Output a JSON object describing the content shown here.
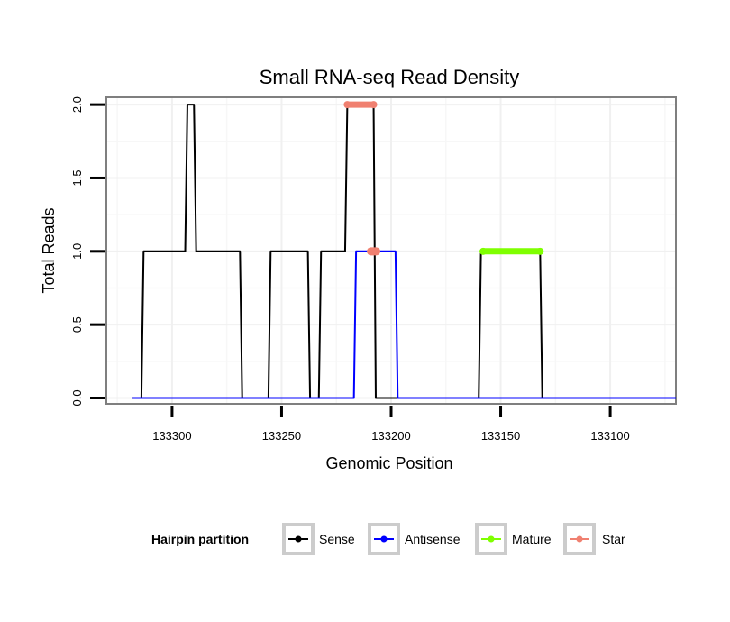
{
  "chart_data": {
    "type": "line",
    "title": "Small RNA-seq Read Density",
    "xlabel": "Genomic Position",
    "ylabel": "Total Reads",
    "xlim": [
      133330,
      133070
    ],
    "ylim": [
      -0.04,
      2.05
    ],
    "x_reversed": true,
    "x_ticks": [
      133300,
      133250,
      133200,
      133150,
      133100
    ],
    "x_tick_labels": [
      "133300",
      "133250",
      "133200",
      "133150",
      "133100"
    ],
    "y_ticks": [
      0,
      0.5,
      1,
      1.5,
      2
    ],
    "y_tick_labels": [
      "0.0",
      "0.5",
      "1.0",
      "1.5",
      "2.0"
    ],
    "grid": true,
    "legend": {
      "title": "Hairpin partition",
      "position": "bottom",
      "entries": [
        "Sense",
        "Antisense",
        "Mature",
        "Star"
      ]
    },
    "series": [
      {
        "name": "Sense",
        "color": "#000000",
        "x": [
          133318,
          133314,
          133313,
          133294,
          133293,
          133290,
          133289,
          133269,
          133268,
          133256,
          133255,
          133238,
          133237,
          133233,
          133232,
          133221,
          133220,
          133208,
          133207,
          133200,
          133199,
          133160,
          133159,
          133132,
          133131,
          133070
        ],
        "y": [
          0,
          0,
          1,
          1,
          2,
          2,
          1,
          1,
          0,
          0,
          1,
          1,
          0,
          0,
          1,
          1,
          2,
          2,
          0,
          0,
          0,
          0,
          1,
          1,
          0,
          0
        ]
      },
      {
        "name": "Antisense",
        "color": "#0000ff",
        "x": [
          133318,
          133217,
          133216,
          133198,
          133197,
          133132,
          133131,
          133070
        ],
        "y": [
          0,
          0,
          1,
          1,
          0,
          0,
          0,
          0
        ]
      },
      {
        "name": "Mature",
        "color": "#7fff00",
        "x": [
          133158,
          133132
        ],
        "y": [
          1,
          1
        ]
      },
      {
        "name": "Star",
        "color": "#f08070",
        "x": [
          133220,
          133208
        ],
        "y": [
          2,
          2
        ],
        "extra_points": [
          {
            "x": 133208,
            "y": 1
          }
        ]
      }
    ]
  }
}
